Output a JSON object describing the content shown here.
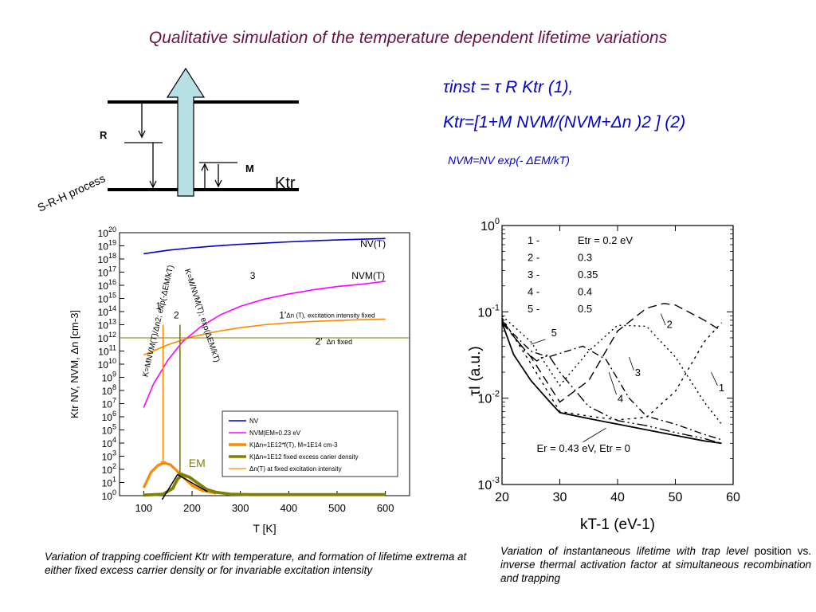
{
  "slide": {
    "title": "Qualitative simulation of the temperature dependent lifetime variations"
  },
  "equations": {
    "tau_inst": "τinst = τ R Ktr (1),",
    "k_tr": "Ktr=[1+M NVM/(NVM+Δn )2 ] (2)",
    "n_vm": "NVM=NV exp(- ΔEM/kT)"
  },
  "diagram": {
    "process_label": "S-R-H process",
    "r_label": "R",
    "m_label": "M",
    "ktr_label": "Ktr"
  },
  "left_chart": {
    "type": "line",
    "xlabel": "T [K]",
    "ylabel": "Ktr   NV, NVM, Δn [cm-3]",
    "x_ticks": [
      100,
      200,
      300,
      400,
      500,
      600
    ],
    "xlim": [
      50,
      650
    ],
    "ylim": [
      1,
      1e+20
    ],
    "y_scale": "log",
    "y_ticks": [
      "100",
      "101",
      "102",
      "103",
      "104",
      "105",
      "106",
      "107",
      "108",
      "109",
      "1010",
      "1011",
      "1012",
      "1013",
      "1014",
      "1015",
      "1016",
      "1017",
      "1018",
      "1019",
      "1020"
    ],
    "curve_labels": {
      "nv": "NV(T)",
      "nvm": "NVM(T)",
      "three": "3",
      "one_prime": "1'",
      "one_prime_note": "Δn (T), excitation intensity fixed",
      "two_prime": "2'",
      "two_prime_note": "Δn fixed",
      "one": "1",
      "two": "2",
      "em": "EM",
      "rot1": "K=MNVM(T)/Δn2;  exp(-ΔEM/kT)",
      "rot2": "K=M/NVM(T);   exp(ΔEM/kT)"
    },
    "legend_placement": "lower-right",
    "legend": [
      {
        "label": "NV",
        "color": "#0000cc"
      },
      {
        "label": "NVM|EM=0.23 eV",
        "color": "#ff00ff"
      },
      {
        "label": "K|Δn=1E12*f(T), M=1E14 cm-3",
        "color": "#ff8800"
      },
      {
        "label": "K|Δn=1E12 fixed excess carier density",
        "color": "#808000"
      },
      {
        "label": "Δn(T) at fixed excitation intensity",
        "color": "#ff8800"
      }
    ],
    "series": [
      {
        "name": "NV",
        "color": "#0000cc",
        "x": [
          100,
          150,
          200,
          250,
          300,
          350,
          400,
          450,
          500,
          550,
          600
        ],
        "y": [
          2.5e+18,
          4.6e+18,
          7.1e+18,
          9.9e+18,
          1.3e+19,
          1.6e+19,
          2e+19,
          2.4e+19,
          2.8e+19,
          3.2e+19,
          3.6e+19
        ]
      },
      {
        "name": "NVM|EM=0.23 eV",
        "color": "#ff00ff",
        "x": [
          100,
          120,
          150,
          180,
          220,
          260,
          300,
          350,
          400,
          450,
          500,
          550,
          600
        ],
        "y": [
          5000000.0,
          300000000.0,
          20000000000.0,
          500000000000.0,
          8000000000000.0,
          60000000000000.0,
          250000000000000.0,
          900000000000000.0,
          2200000000000000.0,
          4500000000000000.0,
          8000000000000000.0,
          1.2e+16,
          2e+16
        ]
      },
      {
        "name": "K|Δn=1E12*f(T), M=1E14 cm-3",
        "color": "#ff8800",
        "x": [
          100,
          115,
          130,
          142,
          155,
          170,
          185,
          200,
          220,
          250
        ],
        "y": [
          4,
          60,
          210,
          300,
          230,
          70,
          20,
          6,
          2.5,
          1.5
        ]
      },
      {
        "name": "K|Δn=1E12 fixed excess carier density",
        "color": "#808000",
        "x": [
          100,
          140,
          160,
          170,
          180,
          195,
          210,
          230,
          250,
          280,
          320,
          400,
          600
        ],
        "y": [
          1.1,
          1.3,
          3.5,
          18,
          40,
          25,
          10,
          3,
          1.8,
          1.3,
          1.2,
          1.2,
          1.2
        ]
      },
      {
        "name": "Δn(T) at fixed excitation intensity",
        "color": "#ff8800",
        "x": [
          100,
          150,
          200,
          250,
          300,
          350,
          400,
          450,
          500,
          550,
          600
        ],
        "y": [
          50000000000.0,
          300000000000.0,
          1200000000000.0,
          3000000000000.0,
          6000000000000.0,
          10000000000000.0,
          14000000000000.0,
          18000000000000.0,
          21000000000000.0,
          24000000000000.0,
          27000000000000.0
        ]
      },
      {
        "name": "Δn fixed",
        "color": "#808000",
        "x": [
          50,
          650
        ],
        "y": [
          1000000000000.0,
          1000000000000.0
        ]
      }
    ]
  },
  "right_chart": {
    "type": "line",
    "xlabel": "kT-1   (eV-1)",
    "ylabel": "τI   (a.u.)",
    "x_ticks": [
      20,
      30,
      40,
      50,
      60
    ],
    "xlim": [
      20,
      60
    ],
    "ylim": [
      0.001,
      1
    ],
    "y_scale": "log",
    "y_ticks": [
      "100",
      "10-1",
      "10-2",
      "10-3"
    ],
    "legend_placement": "top-left",
    "legend": [
      {
        "num": "1 -",
        "value": "Etr = 0.2 eV"
      },
      {
        "num": "2 -",
        "value": "0.3"
      },
      {
        "num": "3 -",
        "value": "0.35"
      },
      {
        "num": "4 -",
        "value": "0.4"
      },
      {
        "num": "5 -",
        "value": "0.5"
      }
    ],
    "labels": {
      "c1": "1",
      "c2": "2",
      "c3": "3",
      "c4": "4",
      "c5": "5",
      "er": "Er = 0.43 eV, Etr = 0"
    },
    "series": [
      {
        "name": "Etr = 0",
        "dash": "",
        "x": [
          20,
          22,
          25,
          28,
          30,
          35,
          40,
          45,
          50,
          55,
          58
        ],
        "y": [
          0.075,
          0.032,
          0.016,
          0.0095,
          0.0068,
          0.0058,
          0.005,
          0.0043,
          0.0037,
          0.0032,
          0.003
        ]
      },
      {
        "name": "1",
        "dash": "3 5",
        "x": [
          20,
          25,
          30,
          35,
          40,
          45,
          50,
          55,
          58
        ],
        "y": [
          0.085,
          0.025,
          0.007,
          0.0062,
          0.0056,
          0.006,
          0.012,
          0.045,
          0.075
        ]
      },
      {
        "name": "2",
        "dash": "11 6",
        "x": [
          20,
          25,
          30,
          35,
          40,
          45,
          48,
          50,
          55,
          58
        ],
        "y": [
          0.075,
          0.03,
          0.009,
          0.016,
          0.06,
          0.11,
          0.125,
          0.12,
          0.08,
          0.06
        ]
      },
      {
        "name": "3",
        "dash": "2 4",
        "x": [
          20,
          25,
          30,
          35,
          40,
          45,
          50,
          55,
          58
        ],
        "y": [
          0.09,
          0.045,
          0.014,
          0.035,
          0.07,
          0.068,
          0.03,
          0.009,
          0.005
        ]
      },
      {
        "name": "4",
        "dash": "9 4 2 4",
        "x": [
          20,
          25,
          28,
          30,
          34,
          38,
          42,
          45,
          50,
          55,
          58
        ],
        "y": [
          0.075,
          0.035,
          0.03,
          0.033,
          0.04,
          0.028,
          0.01,
          0.0062,
          0.005,
          0.0038,
          0.0033
        ]
      },
      {
        "name": "5",
        "dash": "13 4 2 4 2 4",
        "x": [
          20,
          24,
          26,
          28,
          30,
          35,
          40,
          45,
          50,
          55,
          58
        ],
        "y": [
          0.08,
          0.035,
          0.027,
          0.032,
          0.02,
          0.008,
          0.0055,
          0.0048,
          0.004,
          0.0034,
          0.003
        ]
      }
    ]
  },
  "captions": {
    "left": "Variation of trapping coefficient Ktr with temperature,  and formation of lifetime extrema at either fixed excess carrier density or for invariable excitation intensity",
    "right_a": "Variation of instantaneous lifetime with trap level",
    "right_b": "position vs.",
    "right_c": "inverse thermal    activation factor at simultaneous recombination and trapping"
  }
}
